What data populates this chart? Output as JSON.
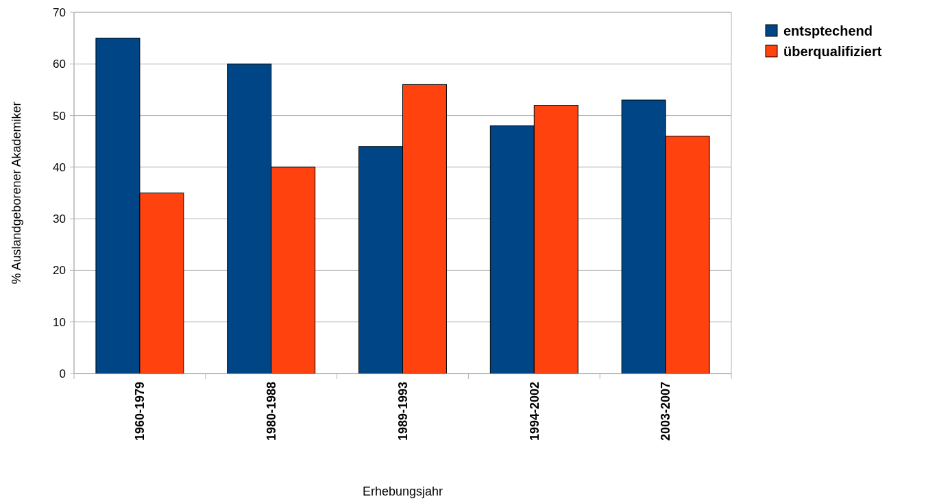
{
  "chart_data": {
    "type": "bar",
    "xlabel": "Erhebungsjahr",
    "ylabel": "% Auslandgeborener Akademiker",
    "categories": [
      "1960-1979",
      "1980-1988",
      "1989-1993",
      "1994-2002",
      "2003-2007"
    ],
    "series": [
      {
        "name": "entsptechend",
        "color": "#004586",
        "values": [
          65,
          60,
          44,
          48,
          53
        ]
      },
      {
        "name": "überqualifiziert",
        "color": "#ff420e",
        "values": [
          35,
          40,
          56,
          52,
          46
        ]
      }
    ],
    "ylim": [
      0,
      70
    ],
    "yticks": [
      0,
      10,
      20,
      30,
      40,
      50,
      60,
      70
    ],
    "grid": "y",
    "legend": "top right"
  }
}
